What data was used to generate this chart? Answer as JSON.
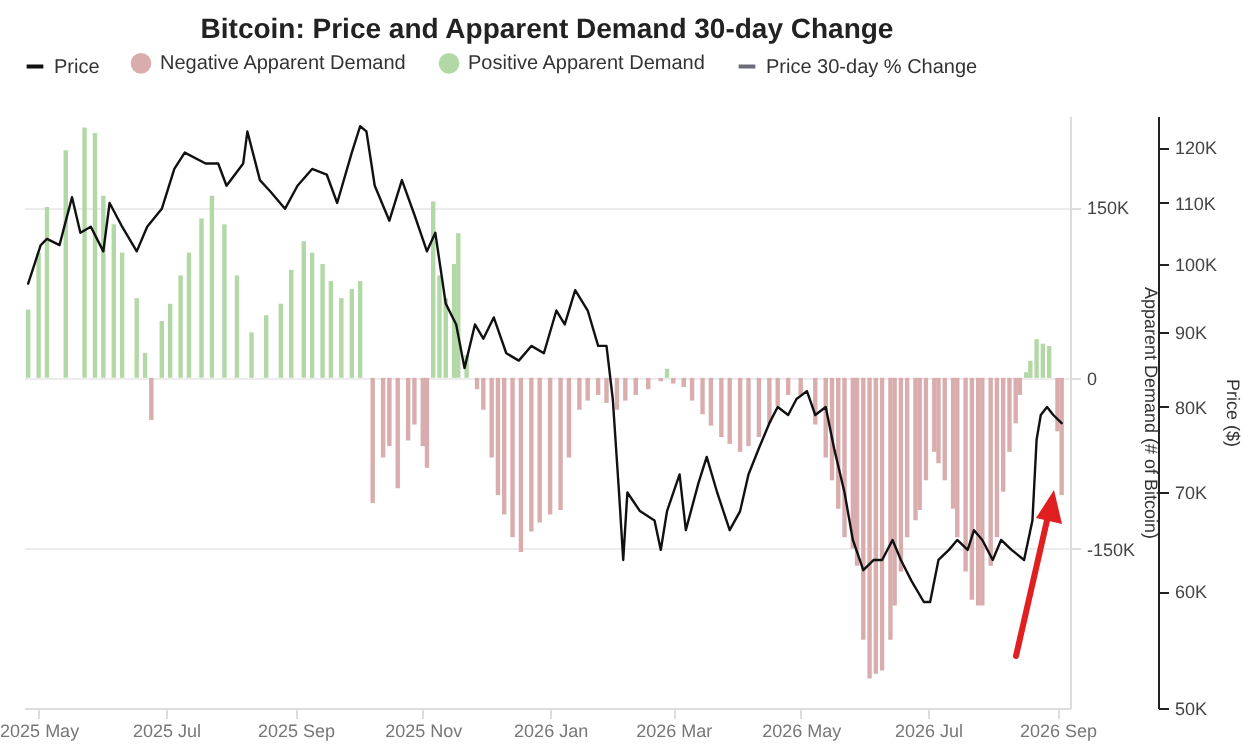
{
  "chart_data": {
    "type": "bar",
    "title": "Bitcoin: Price and Apparent Demand 30-day Change",
    "ylabel": "Apparent Demand (# of Bitcoin)",
    "y2label": "Price ($)",
    "xlim": [
      "2025-04-24",
      "2026-09-07"
    ],
    "xticks": [
      {
        "value": "2025-05",
        "label": "2025 May"
      },
      {
        "value": "2025-07",
        "label": "2025 Jul"
      },
      {
        "value": "2025-09",
        "label": "2025 Sep"
      },
      {
        "value": "2025-11",
        "label": "2025 Nov"
      },
      {
        "value": "2026-01",
        "label": "2026 Jan"
      },
      {
        "value": "2026-03",
        "label": "2026 Mar"
      },
      {
        "value": "2026-05",
        "label": "2026 May"
      },
      {
        "value": "2026-07",
        "label": "2026 Jul"
      },
      {
        "value": "2026-09",
        "label": "2026 Sep"
      }
    ],
    "ylim": [
      -290000,
      230000
    ],
    "yticks": [
      {
        "value": -150000,
        "label": "-150K"
      },
      0,
      {
        "value": 150000,
        "label": "150K"
      }
    ],
    "y2lim": [
      50000,
      126000
    ],
    "y2ticks": [
      {
        "value": 50000,
        "label": "50K"
      },
      {
        "value": 60000,
        "label": "60K"
      },
      {
        "value": 70000,
        "label": "70K"
      },
      {
        "value": 80000,
        "label": "80K"
      },
      {
        "value": 90000,
        "label": "90K"
      },
      {
        "value": 100000,
        "label": "100K"
      },
      {
        "value": 110000,
        "label": "110K"
      },
      {
        "value": 120000,
        "label": "120K"
      }
    ],
    "log": "y2",
    "grid": "y",
    "legend": "top",
    "series": [
      {
        "name": "Price",
        "type": "line",
        "axis": "y2",
        "color": "#111111",
        "x": [
          "2025-04-26",
          "2025-05-02",
          "2025-05-05",
          "2025-05-11",
          "2025-05-17",
          "2025-05-21",
          "2025-05-26",
          "2025-06-01",
          "2025-06-04",
          "2025-06-10",
          "2025-06-17",
          "2025-06-22",
          "2025-06-29",
          "2025-07-05",
          "2025-07-10",
          "2025-07-20",
          "2025-07-26",
          "2025-07-30",
          "2025-08-07",
          "2025-08-09",
          "2025-08-15",
          "2025-08-20",
          "2025-08-27",
          "2025-09-02",
          "2025-09-09",
          "2025-09-16",
          "2025-09-21",
          "2025-09-28",
          "2025-10-02",
          "2025-10-05",
          "2025-10-09",
          "2025-10-16",
          "2025-10-22",
          "2025-10-28",
          "2025-11-03",
          "2025-11-07",
          "2025-11-12",
          "2025-11-17",
          "2025-11-21",
          "2025-11-26",
          "2025-11-30",
          "2025-12-05",
          "2025-12-11",
          "2025-12-17",
          "2025-12-23",
          "2025-12-29",
          "2026-01-04",
          "2026-01-08",
          "2026-01-13",
          "2026-01-19",
          "2026-01-24",
          "2026-01-28",
          "2026-01-31",
          "2026-02-03",
          "2026-02-05",
          "2026-02-07",
          "2026-02-13",
          "2026-02-20",
          "2026-02-23",
          "2026-02-26",
          "2026-03-04",
          "2026-03-07",
          "2026-03-13",
          "2026-03-17",
          "2026-03-22",
          "2026-03-28",
          "2026-04-02",
          "2026-04-06",
          "2026-04-11",
          "2026-04-16",
          "2026-04-20",
          "2026-04-25",
          "2026-04-29",
          "2026-05-04",
          "2026-05-08",
          "2026-05-13",
          "2026-05-17",
          "2026-05-22",
          "2026-05-26",
          "2026-05-31",
          "2026-06-05",
          "2026-06-09",
          "2026-06-14",
          "2026-06-18",
          "2026-06-23",
          "2026-06-29",
          "2026-07-02",
          "2026-07-06",
          "2026-07-11",
          "2026-07-15",
          "2026-07-20",
          "2026-07-23",
          "2026-07-27",
          "2026-08-01",
          "2026-08-05",
          "2026-08-10",
          "2026-08-16",
          "2026-08-20",
          "2026-08-22",
          "2026-08-24",
          "2026-08-27",
          "2026-08-30",
          "2026-09-03"
        ],
        "values": [
          97000,
          103000,
          104000,
          103000,
          111000,
          105000,
          106000,
          102000,
          110000,
          106000,
          102000,
          106000,
          109000,
          116000,
          119000,
          117000,
          117000,
          113000,
          117000,
          123000,
          114000,
          112000,
          109000,
          113000,
          116000,
          115000,
          110000,
          119000,
          124000,
          123000,
          113000,
          107000,
          114000,
          108000,
          102000,
          105000,
          94000,
          91000,
          85000,
          91000,
          89000,
          92000,
          87000,
          86000,
          88000,
          87000,
          93000,
          91000,
          96000,
          93000,
          88000,
          88000,
          81000,
          70000,
          63000,
          70000,
          68000,
          67000,
          64000,
          68000,
          72000,
          66000,
          71000,
          74000,
          70000,
          66000,
          68000,
          72000,
          75000,
          78000,
          80000,
          79000,
          81000,
          82000,
          79000,
          80000,
          75000,
          70000,
          65000,
          62000,
          63000,
          63000,
          65000,
          63000,
          61000,
          59000,
          59000,
          63000,
          64000,
          65000,
          64000,
          66000,
          65000,
          63000,
          65000,
          64000,
          63000,
          67000,
          76000,
          79000,
          80000,
          79000,
          78000
        ]
      },
      {
        "name": "Negative Apparent Demand",
        "color": "#d9adad",
        "x": [
          "2025-06-24",
          "2025-10-08",
          "2025-10-13",
          "2025-10-16",
          "2025-10-20",
          "2025-10-25",
          "2025-10-28",
          "2025-11-01",
          "2025-11-03",
          "2025-11-27",
          "2025-11-30",
          "2025-12-04",
          "2025-12-07",
          "2025-12-10",
          "2025-12-14",
          "2025-12-18",
          "2025-12-23",
          "2025-12-27",
          "2026-01-01",
          "2026-01-06",
          "2026-01-10",
          "2026-01-15",
          "2026-01-19",
          "2026-01-24",
          "2026-01-28",
          "2026-02-02",
          "2026-02-06",
          "2026-02-11",
          "2026-02-17",
          "2026-02-23",
          "2026-03-01",
          "2026-03-06",
          "2026-03-10",
          "2026-03-15",
          "2026-03-19",
          "2026-03-24",
          "2026-03-28",
          "2026-04-02",
          "2026-04-06",
          "2026-04-11",
          "2026-04-16",
          "2026-04-20",
          "2026-04-25",
          "2026-05-01",
          "2026-05-08",
          "2026-05-13",
          "2026-05-16",
          "2026-05-19",
          "2026-05-22",
          "2026-05-26",
          "2026-05-28",
          "2026-05-31",
          "2026-06-03",
          "2026-06-06",
          "2026-06-09",
          "2026-06-13",
          "2026-06-15",
          "2026-06-18",
          "2026-06-21",
          "2026-06-25",
          "2026-06-27",
          "2026-06-30",
          "2026-07-04",
          "2026-07-06",
          "2026-07-09",
          "2026-07-13",
          "2026-07-15",
          "2026-07-19",
          "2026-07-22",
          "2026-07-25",
          "2026-07-27",
          "2026-07-31",
          "2026-08-03",
          "2026-08-06",
          "2026-08-09",
          "2026-08-12",
          "2026-08-14",
          "2026-09-01",
          "2026-09-03"
        ],
        "values": [
          -37000,
          -110000,
          -70000,
          -60000,
          -97000,
          -55000,
          -41000,
          -60000,
          -79000,
          -10000,
          -28000,
          -70000,
          -103000,
          -120000,
          -140000,
          -153000,
          -135000,
          -127000,
          -120000,
          -116000,
          -70000,
          -28000,
          -20000,
          -15000,
          -22000,
          -28000,
          -20000,
          -15000,
          -10000,
          -3000,
          -5000,
          -8000,
          -20000,
          -32000,
          -42000,
          -52000,
          -58000,
          -65000,
          -60000,
          -52000,
          -40000,
          -25000,
          -15000,
          -15000,
          -41000,
          -70000,
          -90000,
          -115000,
          -140000,
          -150000,
          -165000,
          -230000,
          -264000,
          -260000,
          -257000,
          -230000,
          -200000,
          -170000,
          -140000,
          -125000,
          -116000,
          -90000,
          -65000,
          -75000,
          -90000,
          -115000,
          -140000,
          -170000,
          -195000,
          -200000,
          -200000,
          -165000,
          -140000,
          -100000,
          -65000,
          -40000,
          -15000,
          -47000,
          -103000
        ]
      },
      {
        "name": "Positive Apparent Demand",
        "color": "#b2d8a6",
        "x": [
          "2025-04-26",
          "2025-05-01",
          "2025-05-05",
          "2025-05-14",
          "2025-05-23",
          "2025-05-28",
          "2025-06-01",
          "2025-06-06",
          "2025-06-10",
          "2025-06-17",
          "2025-06-21",
          "2025-06-29",
          "2025-07-03",
          "2025-07-08",
          "2025-07-12",
          "2025-07-18",
          "2025-07-23",
          "2025-07-29",
          "2025-08-04",
          "2025-08-11",
          "2025-08-18",
          "2025-08-25",
          "2025-08-30",
          "2025-09-05",
          "2025-09-09",
          "2025-09-14",
          "2025-09-18",
          "2025-09-23",
          "2025-09-28",
          "2025-10-02",
          "2025-11-06",
          "2025-11-09",
          "2025-11-12",
          "2025-11-16",
          "2025-11-18",
          "2025-11-22",
          "2026-02-26",
          "2026-08-17",
          "2026-08-19",
          "2026-08-22",
          "2026-08-25",
          "2026-08-28"
        ],
        "values": [
          60000,
          110000,
          150000,
          200000,
          220000,
          215000,
          160000,
          135000,
          110000,
          70000,
          22000,
          50000,
          65000,
          90000,
          110000,
          140000,
          160000,
          135000,
          90000,
          40000,
          55000,
          65000,
          95000,
          120000,
          110000,
          100000,
          85000,
          70000,
          78000,
          85000,
          155000,
          90000,
          70000,
          100000,
          127000,
          20000,
          8000,
          5000,
          15000,
          34000,
          30000,
          28000
        ]
      },
      {
        "name": "Price 30-day % Change",
        "type": "line",
        "axis": "y2",
        "color": "#6b6b78"
      }
    ]
  }
}
